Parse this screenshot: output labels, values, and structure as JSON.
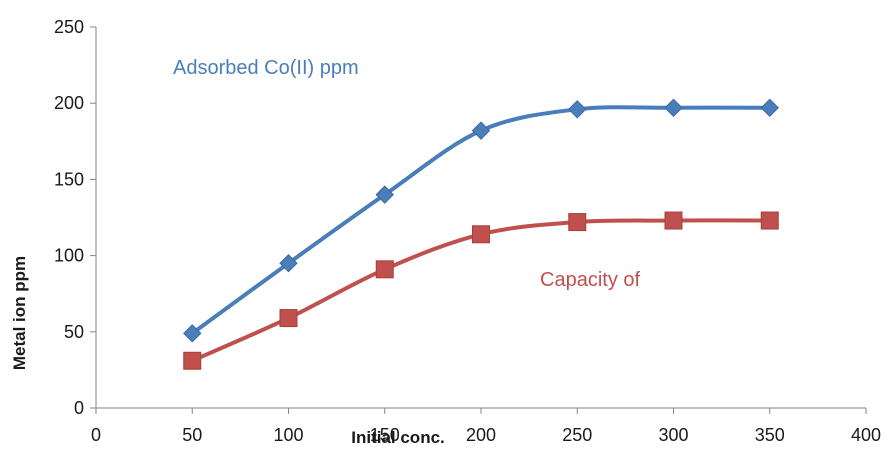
{
  "chart_data": {
    "type": "line",
    "xlabel": "Initial conc.",
    "ylabel": "Metal ion ppm",
    "xlim": [
      0,
      400
    ],
    "ylim": [
      0,
      250
    ],
    "xticks": [
      "0",
      "50",
      "100",
      "150",
      "200",
      "250",
      "300",
      "350",
      "400"
    ],
    "yticks": [
      "0",
      "50",
      "100",
      "150",
      "200",
      "250"
    ],
    "x": [
      50,
      100,
      150,
      200,
      250,
      300,
      350
    ],
    "grid": false,
    "smooth": true,
    "series": [
      {
        "name": "Adsorbed Co(II) ppm",
        "color": "#4a7ebb",
        "marker": "diamond",
        "values": [
          49,
          95,
          140,
          182,
          196,
          197,
          197
        ]
      },
      {
        "name": "Capacity of",
        "color": "#c0504d",
        "marker": "square",
        "values": [
          31,
          59,
          91,
          114,
          122,
          123,
          123
        ]
      }
    ]
  }
}
